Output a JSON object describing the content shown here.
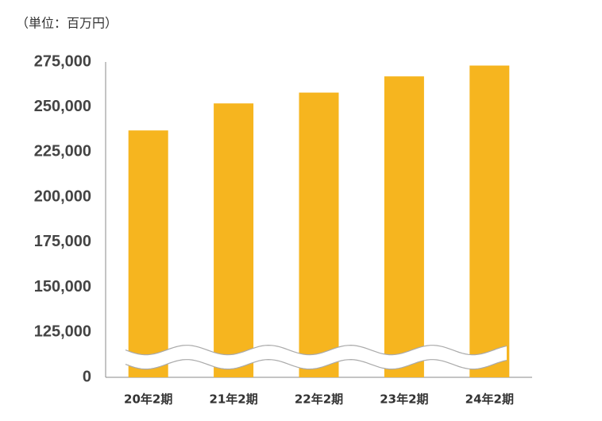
{
  "chart_data": {
    "type": "bar",
    "y_label": "（単位：百万円）",
    "categories": [
      "20年2期",
      "21年2期",
      "22年2期",
      "23年2期",
      "24年2期"
    ],
    "values": [
      237000,
      252000,
      258000,
      267000,
      273000
    ],
    "color": "#f6b51f",
    "ylim": [
      0,
      275000
    ],
    "yticks": [
      0,
      {
        "value": 125000,
        "label": "125,000"
      },
      {
        "value": 150000,
        "label": "150,000"
      },
      {
        "value": 175000,
        "label": "175,000"
      },
      {
        "value": 200000,
        "label": "200,000"
      },
      {
        "value": 225000,
        "label": "225,000"
      },
      {
        "value": 250000,
        "label": "250,000"
      },
      {
        "value": 275000,
        "label": "275,000"
      }
    ],
    "grid": false
  }
}
